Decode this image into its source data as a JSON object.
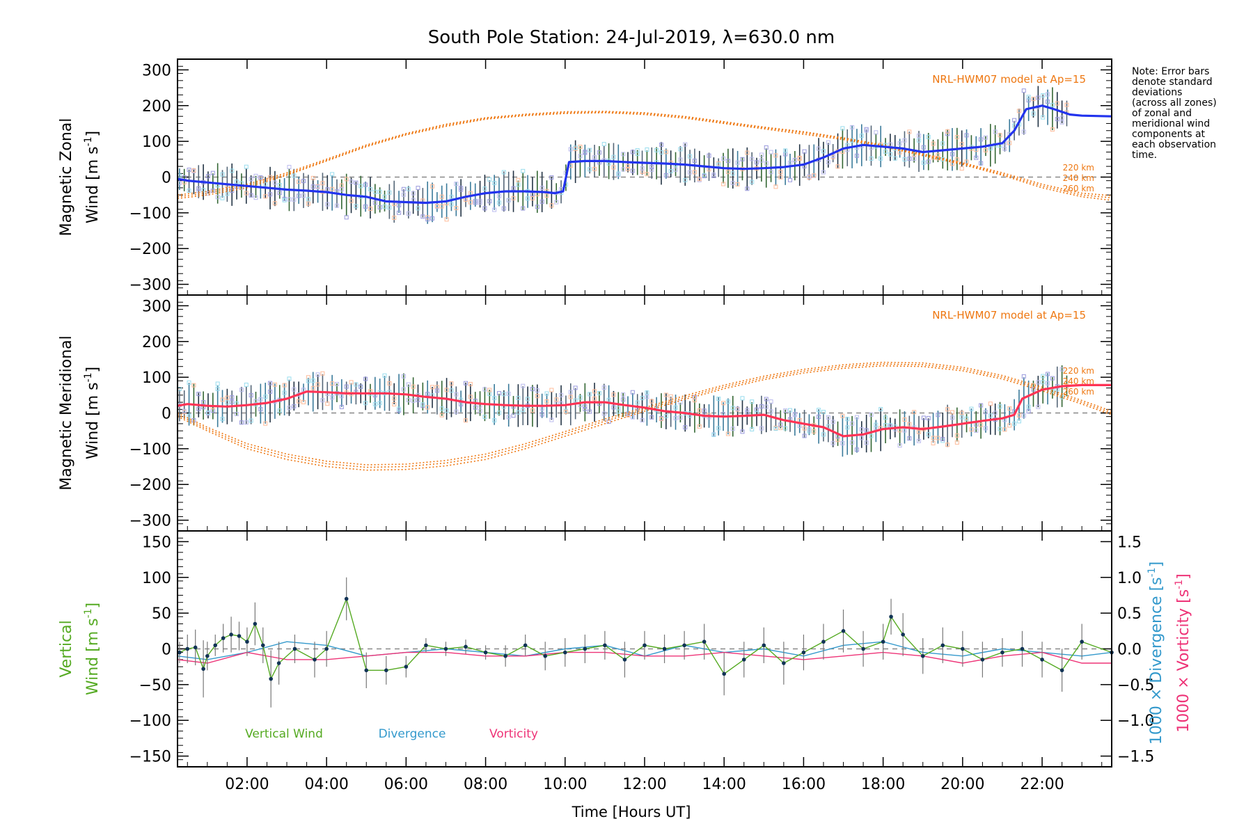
{
  "chart_data": {
    "type": "line",
    "title": "South Pole Station: 24-Jul-2019, λ=630.0 nm",
    "xlabel": "Time [Hours UT]",
    "xlim": [
      0.25,
      23.75
    ],
    "x_ticks": [
      2,
      4,
      6,
      8,
      10,
      12,
      14,
      16,
      18,
      20,
      22
    ],
    "x_tick_labels": [
      "02:00",
      "04:00",
      "06:00",
      "08:00",
      "10:00",
      "12:00",
      "14:00",
      "16:00",
      "18:00",
      "20:00",
      "22:00"
    ],
    "note_lines": [
      "Note: Error bars",
      "denote standard",
      "deviations",
      "(across all zones)",
      "of zonal and",
      "meridional wind",
      "components at",
      "each observation",
      "time."
    ],
    "colors": {
      "zonal": "#2233ee",
      "meridional": "#ff3355",
      "model": "#ee7711",
      "vertical": "#55aa22",
      "divergence": "#3399cc",
      "vorticity": "#ee3377",
      "points": "#113355",
      "errbar": "#777777"
    },
    "panels": [
      {
        "id": "zonal",
        "ylabel_line1": "Magnetic Zonal",
        "ylabel_line2": "Wind [m s",
        "ylabel_sup": "-1",
        "ylabel_close": "]",
        "ylim": [
          -330,
          330
        ],
        "yticks": [
          -300,
          -200,
          -100,
          0,
          100,
          200,
          300
        ],
        "ytick_labels": [
          "−300",
          "−200",
          "−100",
          "0",
          "100",
          "200",
          "300"
        ],
        "model_label": "NRL-HWM07 model at Ap=15",
        "model_altitudes": [
          "220 km",
          "240 km",
          "260 km"
        ],
        "wind_x": [
          0.25,
          0.5,
          1,
          1.5,
          2,
          2.5,
          3,
          3.5,
          4,
          4.5,
          5,
          5.5,
          6,
          6.5,
          7,
          7.5,
          8,
          8.5,
          9,
          9.5,
          9.75,
          9.95,
          10.1,
          10.5,
          11,
          11.5,
          12,
          12.5,
          13,
          13.5,
          14,
          14.5,
          15,
          15.5,
          16,
          16.5,
          17,
          17.5,
          18,
          18.5,
          19,
          19.5,
          20,
          20.5,
          21,
          21.3,
          21.6,
          22,
          22.3,
          22.7,
          23,
          23.75
        ],
        "wind_y": [
          -5,
          -10,
          -15,
          -20,
          -25,
          -30,
          -35,
          -38,
          -42,
          -50,
          -55,
          -68,
          -70,
          -72,
          -68,
          -55,
          -45,
          -40,
          -40,
          -42,
          -45,
          -40,
          42,
          45,
          45,
          42,
          40,
          38,
          35,
          30,
          25,
          23,
          25,
          28,
          35,
          55,
          80,
          90,
          85,
          80,
          70,
          75,
          80,
          85,
          95,
          130,
          190,
          200,
          190,
          175,
          172,
          170
        ],
        "model_x": [
          0.25,
          1,
          2,
          3,
          4,
          5,
          6,
          7,
          8,
          9,
          10,
          11,
          12,
          13,
          14,
          15,
          16,
          17,
          18,
          19,
          20,
          21,
          22,
          23,
          23.75
        ],
        "model_series": [
          {
            "name": "220 km",
            "y": [
              -60,
              -50,
              -30,
              5,
              45,
              85,
              118,
              142,
              162,
              172,
              178,
              180,
              175,
              165,
              150,
              135,
              120,
              105,
              85,
              60,
              35,
              5,
              -30,
              -55,
              -65
            ]
          },
          {
            "name": "240 km",
            "y": [
              -55,
              -45,
              -25,
              8,
              47,
              87,
              120,
              145,
              164,
              174,
              180,
              182,
              178,
              168,
              152,
              138,
              124,
              108,
              88,
              63,
              38,
              8,
              -25,
              -50,
              -58
            ]
          },
          {
            "name": "260 km",
            "y": [
              -50,
              -40,
              -20,
              12,
              50,
              90,
              122,
              148,
              166,
              176,
              183,
              184,
              180,
              170,
              155,
              140,
              127,
              110,
              90,
              65,
              40,
              12,
              -20,
              -45,
              -52
            ]
          }
        ]
      },
      {
        "id": "meridional",
        "ylabel_line1": "Magnetic Meridional",
        "ylabel_line2": "Wind [m s",
        "ylabel_sup": "-1",
        "ylabel_close": "]",
        "ylim": [
          -330,
          330
        ],
        "yticks": [
          -300,
          -200,
          -100,
          0,
          100,
          200,
          300
        ],
        "ytick_labels": [
          "−300",
          "−200",
          "−100",
          "0",
          "100",
          "200",
          "300"
        ],
        "model_label": "NRL-HWM07 model at Ap=15",
        "model_altitudes": [
          "220 km",
          "240 km",
          "260 km"
        ],
        "wind_x": [
          0.25,
          0.5,
          1,
          1.5,
          2,
          2.5,
          3,
          3.5,
          4,
          4.5,
          5,
          5.5,
          6,
          6.5,
          7,
          7.5,
          8,
          8.5,
          9,
          9.5,
          10,
          10.5,
          11,
          11.5,
          12,
          12.5,
          13,
          13.5,
          14,
          14.5,
          15,
          15.5,
          16,
          16.5,
          17,
          17.5,
          18,
          18.5,
          19,
          19.5,
          20,
          20.5,
          21,
          21.3,
          21.5,
          22,
          22.5,
          23,
          23.75
        ],
        "wind_y": [
          20,
          25,
          20,
          18,
          22,
          28,
          40,
          60,
          58,
          55,
          55,
          55,
          52,
          45,
          40,
          30,
          25,
          22,
          20,
          20,
          22,
          30,
          30,
          22,
          15,
          5,
          0,
          -8,
          -10,
          -8,
          -5,
          -20,
          -30,
          -40,
          -65,
          -60,
          -45,
          -40,
          -45,
          -38,
          -30,
          -22,
          -15,
          -5,
          40,
          65,
          75,
          78,
          78
        ],
        "model_x": [
          0.25,
          1,
          2,
          3,
          4,
          5,
          6,
          7,
          8,
          9,
          10,
          11,
          12,
          13,
          14,
          15,
          16,
          17,
          18,
          19,
          20,
          21,
          22,
          23,
          23.75
        ],
        "model_series": [
          {
            "name": "220 km",
            "y": [
              -10,
              -50,
              -100,
              -130,
              -150,
              -160,
              -158,
              -148,
              -130,
              -100,
              -65,
              -30,
              5,
              38,
              68,
              93,
              112,
              125,
              132,
              130,
              118,
              95,
              62,
              25,
              -5
            ]
          },
          {
            "name": "240 km",
            "y": [
              -5,
              -45,
              -93,
              -122,
              -142,
              -152,
              -150,
              -140,
              -122,
              -93,
              -58,
              -23,
              10,
              43,
              73,
              98,
              117,
              130,
              137,
              135,
              123,
              100,
              67,
              30,
              0
            ]
          },
          {
            "name": "260 km",
            "y": [
              0,
              -40,
              -86,
              -115,
              -135,
              -145,
              -143,
              -133,
              -115,
              -86,
              -52,
              -17,
              15,
              48,
              78,
              103,
              122,
              135,
              142,
              140,
              128,
              105,
              72,
              35,
              5
            ]
          }
        ]
      },
      {
        "id": "vertical",
        "ylabel_line1": "Vertical",
        "ylabel_line2": "Wind [m s",
        "ylabel_sup": "-1",
        "ylabel_close": "]",
        "ylim": [
          -165,
          165
        ],
        "yticks": [
          -150,
          -100,
          -50,
          0,
          50,
          100,
          150
        ],
        "ytick_labels": [
          "−150",
          "−100",
          "−50",
          "0",
          "50",
          "100",
          "150"
        ],
        "right_ylim": [
          -1.65,
          1.65
        ],
        "right_yticks": [
          -1.5,
          -1.0,
          -0.5,
          0.0,
          0.5,
          1.0,
          1.5
        ],
        "right_ytick_labels": [
          "−1.5",
          "−1.0",
          "−0.5",
          "0.0",
          "0.5",
          "1.0",
          "1.5"
        ],
        "right_label_div": "1000 × Divergence [s",
        "right_label_vort": "1000 × Vorticity [s",
        "legend": [
          "Vertical Wind",
          "Divergence",
          "Vorticity"
        ],
        "vertical_x": [
          0.3,
          0.5,
          0.7,
          0.9,
          1.0,
          1.2,
          1.4,
          1.6,
          1.8,
          2.0,
          2.2,
          2.4,
          2.6,
          2.8,
          3.2,
          3.7,
          4.0,
          4.5,
          5.0,
          5.5,
          6.0,
          6.5,
          7.0,
          7.5,
          8.0,
          8.5,
          9.0,
          9.5,
          10.0,
          10.5,
          11.0,
          11.5,
          12.0,
          12.5,
          13.0,
          13.5,
          14.0,
          14.5,
          15.0,
          15.5,
          16.0,
          16.5,
          17.0,
          17.5,
          18.0,
          18.2,
          18.5,
          19.0,
          19.5,
          20.0,
          20.5,
          21.0,
          21.5,
          22.0,
          22.5,
          23.0,
          23.75
        ],
        "vertical_y": [
          -5,
          0,
          2,
          -28,
          -10,
          5,
          15,
          20,
          18,
          10,
          35,
          5,
          -42,
          -20,
          0,
          -15,
          0,
          70,
          -30,
          -30,
          -25,
          5,
          0,
          3,
          -5,
          -10,
          5,
          -10,
          -5,
          0,
          5,
          -15,
          5,
          0,
          5,
          10,
          -35,
          -15,
          5,
          -20,
          -5,
          10,
          25,
          0,
          10,
          45,
          20,
          -10,
          5,
          0,
          -15,
          -5,
          0,
          -15,
          -30,
          10,
          -5
        ],
        "vertical_err": [
          15,
          20,
          25,
          40,
          20,
          15,
          20,
          25,
          20,
          20,
          30,
          25,
          40,
          30,
          20,
          25,
          25,
          30,
          25,
          20,
          15,
          10,
          10,
          10,
          10,
          15,
          15,
          20,
          20,
          20,
          20,
          25,
          20,
          20,
          20,
          25,
          30,
          25,
          25,
          30,
          25,
          25,
          30,
          25,
          25,
          25,
          30,
          25,
          25,
          25,
          25,
          20,
          25,
          25,
          30,
          25,
          20
        ],
        "divergence_x": [
          0.25,
          1,
          2,
          3,
          4,
          5,
          6,
          7,
          8,
          9,
          10,
          11,
          12,
          13,
          14,
          15,
          16,
          17,
          18,
          19,
          20,
          21,
          22,
          23,
          23.75
        ],
        "divergence_y": [
          -0.1,
          -0.15,
          -0.05,
          0.1,
          0.05,
          -0.1,
          -0.05,
          0.0,
          -0.05,
          -0.1,
          0.0,
          0.05,
          -0.1,
          0.05,
          -0.05,
          0.0,
          -0.1,
          0.05,
          0.1,
          -0.05,
          -0.1,
          0.0,
          -0.05,
          -0.1,
          -0.05
        ],
        "vorticity_x": [
          0.25,
          1,
          2,
          3,
          4,
          5,
          6,
          7,
          8,
          9,
          10,
          11,
          12,
          13,
          14,
          15,
          16,
          17,
          18,
          19,
          20,
          21,
          22,
          23,
          23.75
        ],
        "vorticity_y": [
          -0.15,
          -0.2,
          -0.05,
          -0.15,
          -0.15,
          -0.1,
          -0.05,
          -0.05,
          -0.1,
          -0.1,
          -0.05,
          -0.05,
          -0.1,
          -0.1,
          -0.05,
          -0.1,
          -0.15,
          -0.1,
          -0.05,
          -0.1,
          -0.2,
          -0.1,
          -0.05,
          -0.2,
          -0.2
        ]
      }
    ]
  }
}
